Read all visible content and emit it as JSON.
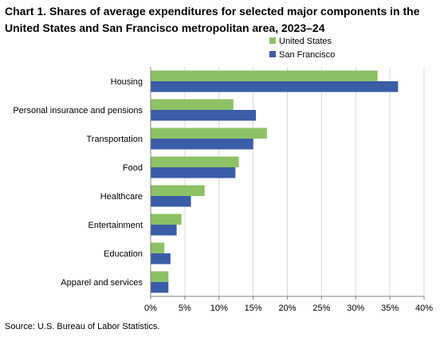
{
  "chart_data": {
    "type": "bar",
    "orientation": "horizontal",
    "title": "Chart 1. Shares of average expenditures for selected major components in the United States and San Francisco metropolitan area, 2023–24",
    "categories": [
      "Housing",
      "Personal insurance and pensions",
      "Transportation",
      "Food",
      "Healthcare",
      "Entertainment",
      "Education",
      "Apparel and services"
    ],
    "series": [
      {
        "name": "United States",
        "color": "#8DC165",
        "values": [
          33.2,
          12.1,
          17.0,
          12.9,
          7.9,
          4.5,
          2.0,
          2.6
        ]
      },
      {
        "name": "San Francisco",
        "color": "#3A5DA8",
        "values": [
          36.2,
          15.4,
          15.0,
          12.4,
          5.9,
          3.8,
          2.9,
          2.6
        ]
      }
    ],
    "xlim": [
      0,
      40
    ],
    "xticks": [
      0,
      5,
      10,
      15,
      20,
      25,
      30,
      35,
      40
    ],
    "tick_suffix": "%",
    "xlabel": "",
    "ylabel": "",
    "grid": "vertical",
    "legend_position": "top-right",
    "source": "Source: U.S. Bureau of Labor Statistics."
  }
}
